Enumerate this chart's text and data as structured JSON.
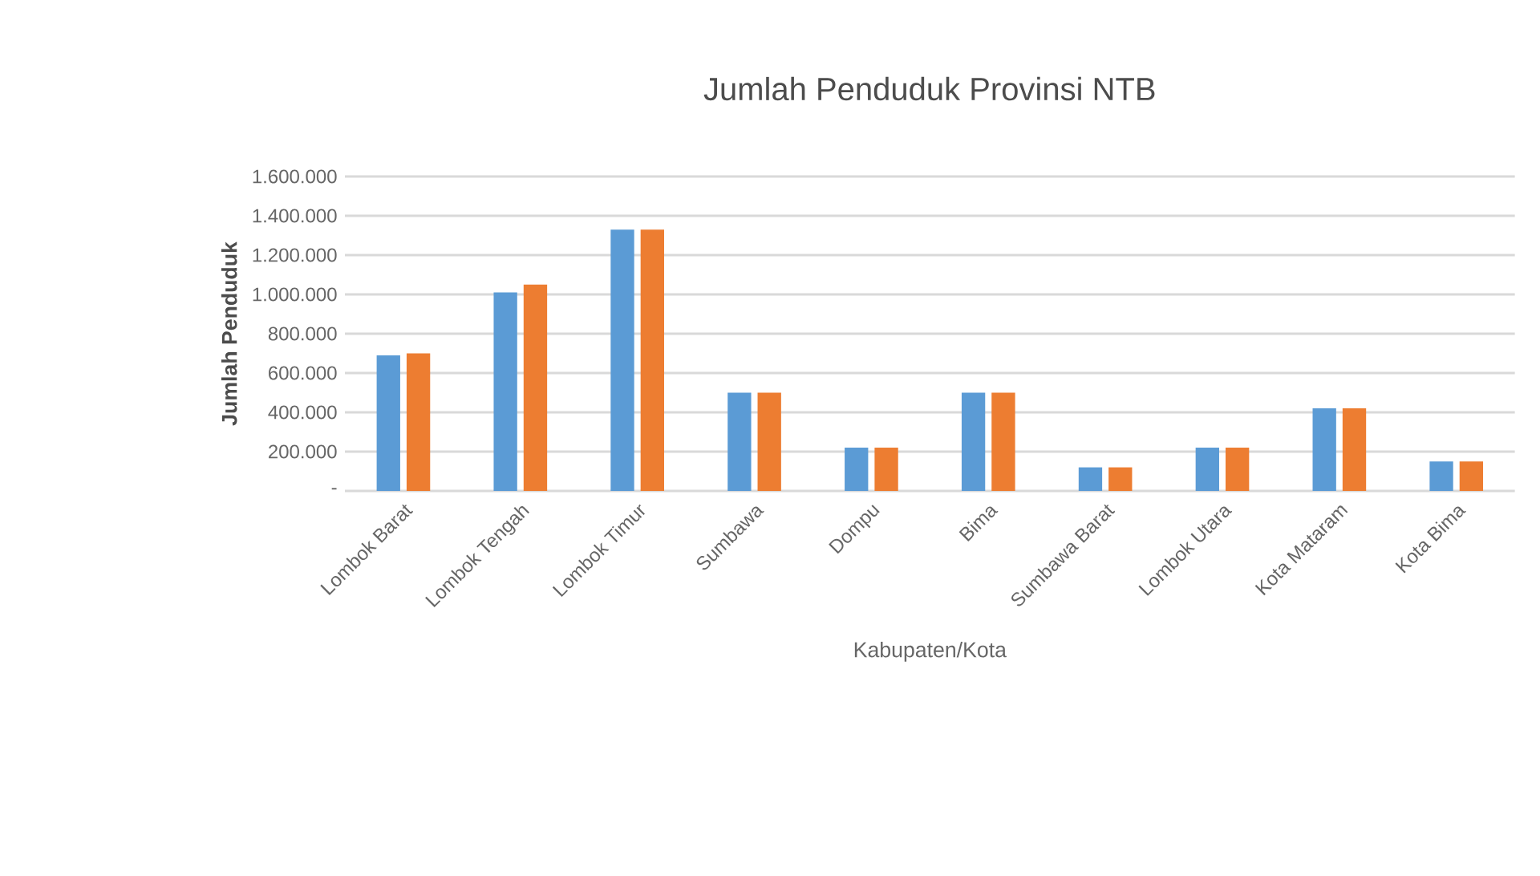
{
  "chart_data": {
    "type": "bar",
    "title": "Jumlah Penduduk Provinsi NTB",
    "xlabel": "Kabupaten/Kota",
    "ylabel": "Jumlah Penduduk",
    "categories": [
      "Lombok Barat",
      "Lombok Tengah",
      "Lombok Timur",
      "Sumbawa",
      "Dompu",
      "Bima",
      "Sumbawa Barat",
      "Lombok Utara",
      "Kota Mataram",
      "Kota Bima"
    ],
    "series": [
      {
        "color": "#5b9bd5",
        "values": [
          690000,
          1010000,
          1330000,
          500000,
          220000,
          500000,
          120000,
          220000,
          420000,
          150000
        ]
      },
      {
        "color": "#ed7d31",
        "values": [
          700000,
          1050000,
          1330000,
          500000,
          220000,
          500000,
          120000,
          220000,
          420000,
          150000
        ]
      }
    ],
    "ylim": [
      0,
      1600000
    ],
    "yticks": [
      {
        "value": 0,
        "label": "-"
      },
      {
        "value": 200000,
        "label": "200.000"
      },
      {
        "value": 400000,
        "label": "400.000"
      },
      {
        "value": 600000,
        "label": "600.000"
      },
      {
        "value": 800000,
        "label": "800.000"
      },
      {
        "value": 1000000,
        "label": "1.000.000"
      },
      {
        "value": 1200000,
        "label": "1.200.000"
      },
      {
        "value": 1400000,
        "label": "1.400.000"
      },
      {
        "value": 1600000,
        "label": "1.600.000"
      }
    ],
    "grid": "y"
  }
}
